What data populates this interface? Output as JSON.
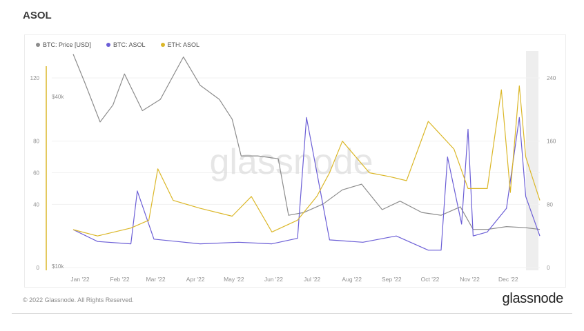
{
  "header": {
    "title": "ASOL"
  },
  "legend": [
    {
      "label": "BTC: Price [USD]",
      "color": "#8c8c8c"
    },
    {
      "label": "BTC: ASOL",
      "color": "#6b5ed6"
    },
    {
      "label": "ETH: ASOL",
      "color": "#dbb728"
    }
  ],
  "watermark": "glassnode",
  "footer": {
    "copyright": "© 2022 Glassnode. All Rights Reserved.",
    "brand": "glassnode"
  },
  "colors": {
    "btc_price": "#8c8c8c",
    "btc_asol": "#6b5ed6",
    "eth_asol": "#dbb728",
    "left_axis_line": "#dbb728"
  },
  "chart_data": {
    "type": "line",
    "x_labels": [
      "Jan '22",
      "Feb '22",
      "Mar '22",
      "Apr '22",
      "May '22",
      "Jun '22",
      "Jul '22",
      "Aug '22",
      "Sep '22",
      "Oct '22",
      "Nov '22",
      "Dec '22"
    ],
    "left_axis_ticks": [
      "0",
      "40",
      "80",
      "120"
    ],
    "left_axis_ticks_extra": [
      "60"
    ],
    "price_axis_ticks": [
      "$10k",
      "$40k"
    ],
    "right_axis_ticks": [
      "0",
      "80",
      "160",
      "240"
    ],
    "ylim_left": [
      0,
      120
    ],
    "ylim_right": [
      0,
      240
    ],
    "grid": "horizontal",
    "legend_position": "top-left",
    "series": [
      {
        "name": "BTC: Price [USD]",
        "axis": "price",
        "x": [
          "2022-01-01",
          "2022-01-10",
          "2022-01-22",
          "2022-02-01",
          "2022-02-10",
          "2022-02-24",
          "2022-03-10",
          "2022-03-28",
          "2022-04-10",
          "2022-04-25",
          "2022-05-05",
          "2022-05-12",
          "2022-05-25",
          "2022-06-10",
          "2022-06-18",
          "2022-06-30",
          "2022-07-15",
          "2022-07-30",
          "2022-08-14",
          "2022-08-30",
          "2022-09-13",
          "2022-09-30",
          "2022-10-15",
          "2022-10-30",
          "2022-11-09",
          "2022-11-20",
          "2022-12-05",
          "2022-12-20",
          "2022-12-31"
        ],
        "values": [
          47500,
          42500,
          35500,
          38500,
          44000,
          37500,
          39500,
          47000,
          42000,
          39500,
          36000,
          29500,
          29500,
          29000,
          19000,
          19500,
          21000,
          23500,
          24500,
          20000,
          21500,
          19500,
          19000,
          20500,
          16500,
          16500,
          17000,
          16800,
          16500
        ]
      },
      {
        "name": "BTC: ASOL",
        "axis": "right",
        "x": [
          "2022-01-01",
          "2022-01-20",
          "2022-02-15",
          "2022-02-20",
          "2022-03-05",
          "2022-04-10",
          "2022-05-10",
          "2022-06-05",
          "2022-06-25",
          "2022-07-02",
          "2022-07-20",
          "2022-08-15",
          "2022-09-10",
          "2022-10-05",
          "2022-10-15",
          "2022-10-20",
          "2022-10-31",
          "2022-11-05",
          "2022-11-09",
          "2022-11-20",
          "2022-12-05",
          "2022-12-15",
          "2022-12-20",
          "2022-12-31"
        ],
        "values": [
          48,
          33,
          30,
          97,
          36,
          30,
          32,
          30,
          37,
          190,
          35,
          32,
          40,
          22,
          22,
          140,
          55,
          175,
          40,
          45,
          75,
          190,
          90,
          40
        ]
      },
      {
        "name": "ETH: ASOL",
        "axis": "right",
        "x": [
          "2022-01-01",
          "2022-01-20",
          "2022-02-15",
          "2022-03-01",
          "2022-03-08",
          "2022-03-20",
          "2022-04-10",
          "2022-05-05",
          "2022-05-20",
          "2022-06-05",
          "2022-06-25",
          "2022-07-10",
          "2022-07-20",
          "2022-07-30",
          "2022-08-20",
          "2022-09-05",
          "2022-09-18",
          "2022-10-05",
          "2022-10-25",
          "2022-11-05",
          "2022-11-20",
          "2022-12-01",
          "2022-12-08",
          "2022-12-15",
          "2022-12-20",
          "2022-12-31"
        ],
        "values": [
          48,
          40,
          50,
          60,
          125,
          85,
          75,
          65,
          90,
          45,
          60,
          90,
          120,
          160,
          120,
          115,
          110,
          185,
          150,
          100,
          100,
          225,
          95,
          230,
          140,
          85
        ]
      }
    ]
  }
}
